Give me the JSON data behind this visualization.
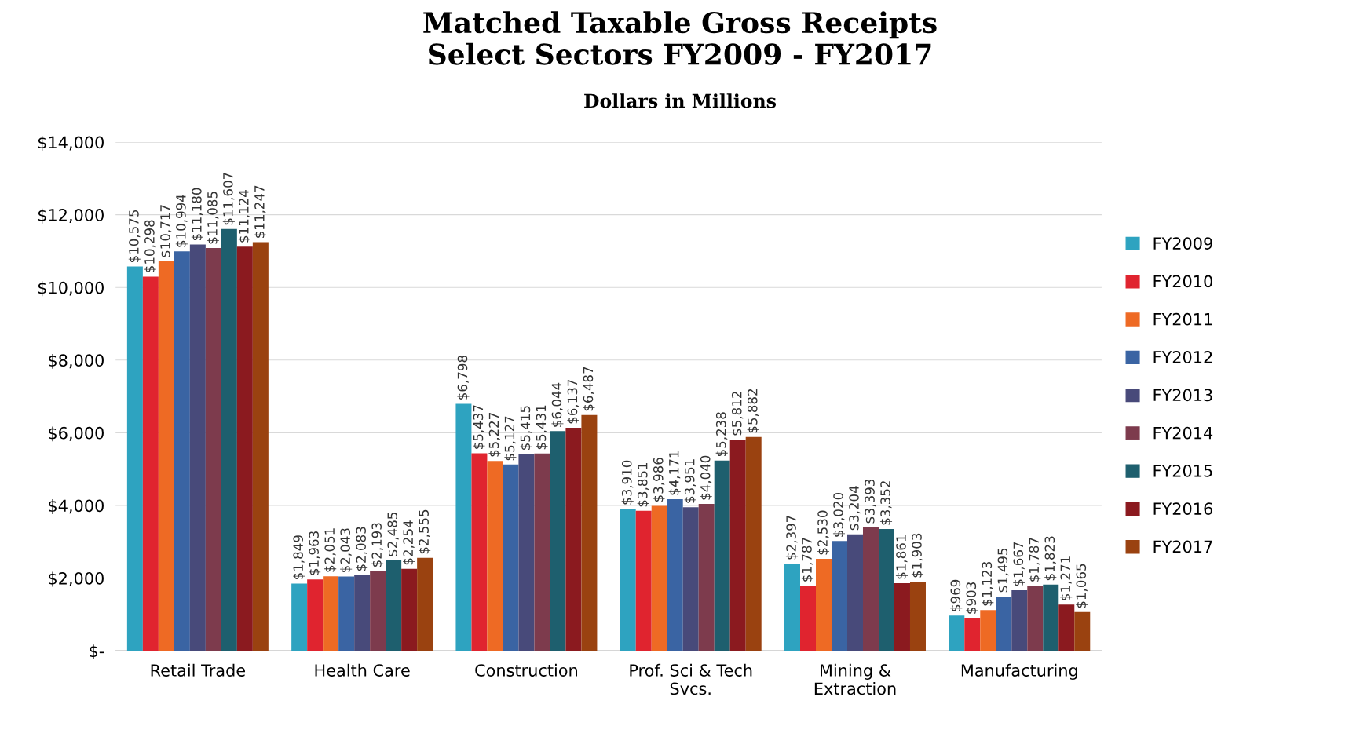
{
  "chart_data": {
    "type": "bar",
    "title": "Matched Taxable Gross Receipts\nSelect Sectors FY2009 - FY2017",
    "subtitle": "Dollars in Millions",
    "categories": [
      "Retail Trade",
      "Health Care",
      "Construction",
      "Prof. Sci & Tech Svcs.",
      "Mining & Extraction",
      "Manufacturing"
    ],
    "series": [
      {
        "name": "FY2009",
        "color": "#2ea3c0",
        "values": [
          10575,
          1849,
          6798,
          3910,
          2397,
          969
        ],
        "value_labels": [
          "$10,575",
          "$1,849",
          "$6,798",
          "$3,910",
          "$2,397",
          "$969"
        ]
      },
      {
        "name": "FY2010",
        "color": "#e0242f",
        "values": [
          10298,
          1963,
          5437,
          3851,
          1787,
          903
        ],
        "value_labels": [
          "$10,298",
          "$1,963",
          "$5,437",
          "$3,851",
          "$1,787",
          "$903"
        ]
      },
      {
        "name": "FY2011",
        "color": "#ee6a24",
        "values": [
          10717,
          2051,
          5227,
          3986,
          2530,
          1123
        ],
        "value_labels": [
          "$10,717",
          "$2,051",
          "$5,227",
          "$3,986",
          "$2,530",
          "$1,123"
        ]
      },
      {
        "name": "FY2012",
        "color": "#3a64a3",
        "values": [
          10994,
          2043,
          5127,
          4171,
          3020,
          1495
        ],
        "value_labels": [
          "$10,994",
          "$2,043",
          "$5,127",
          "$4,171",
          "$3,020",
          "$1,495"
        ]
      },
      {
        "name": "FY2013",
        "color": "#484a7a",
        "values": [
          11180,
          2083,
          5415,
          3951,
          3204,
          1667
        ],
        "value_labels": [
          "$11,180",
          "$2,083",
          "$5,415",
          "$3,951",
          "$3,204",
          "$1,667"
        ]
      },
      {
        "name": "FY2014",
        "color": "#7d3b4d",
        "values": [
          11085,
          2193,
          5431,
          4040,
          3393,
          1787
        ],
        "value_labels": [
          "$11,085",
          "$2,193",
          "$5,431",
          "$4,040",
          "$3,393",
          "$1,787"
        ]
      },
      {
        "name": "FY2015",
        "color": "#1e5f6e",
        "values": [
          11607,
          2485,
          6044,
          5238,
          3352,
          1823
        ],
        "value_labels": [
          "$11,607",
          "$2,485",
          "$6,044",
          "$5,238",
          "$3,352",
          "$1,823"
        ]
      },
      {
        "name": "FY2016",
        "color": "#8b1a1f",
        "values": [
          11124,
          2254,
          6137,
          5812,
          1861,
          1271
        ],
        "value_labels": [
          "$11,124",
          "$2,254",
          "$6,137",
          "$5,812",
          "$1,861",
          "$1,271"
        ]
      },
      {
        "name": "FY2017",
        "color": "#9a4210",
        "values": [
          11247,
          2555,
          6487,
          5882,
          1903,
          1065
        ],
        "value_labels": [
          "$11,247",
          "$2,555",
          "$6,487",
          "$5,882",
          "$1,903",
          "$1,065"
        ]
      }
    ],
    "ylim": [
      0,
      14000
    ],
    "yticks": [
      {
        "value": 0,
        "label": "$-"
      },
      {
        "value": 2000,
        "label": "$2,000"
      },
      {
        "value": 4000,
        "label": "$4,000"
      },
      {
        "value": 6000,
        "label": "$6,000"
      },
      {
        "value": 8000,
        "label": "$8,000"
      },
      {
        "value": 10000,
        "label": "$10,000"
      },
      {
        "value": 12000,
        "label": "$12,000"
      },
      {
        "value": 14000,
        "label": "$14,000"
      }
    ],
    "grid": "y",
    "legend": "right"
  }
}
